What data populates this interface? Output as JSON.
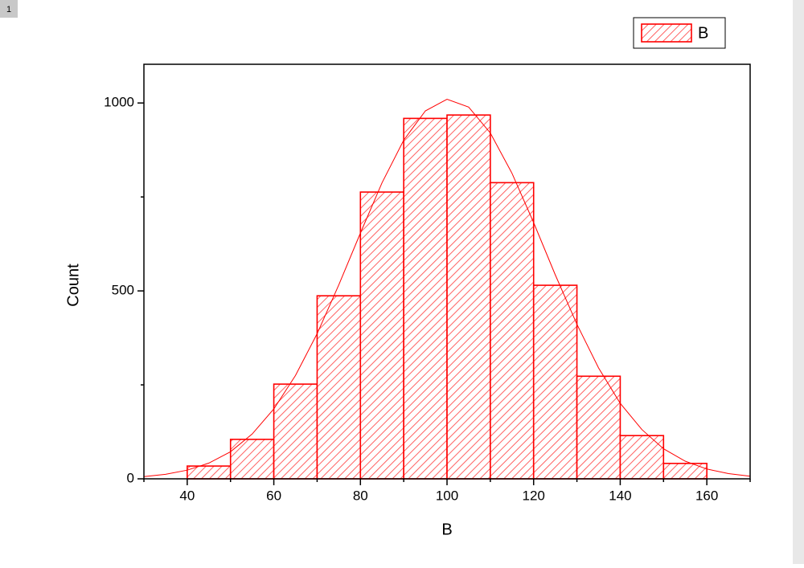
{
  "window": {
    "label": "1"
  },
  "chart_data": {
    "type": "histogram",
    "xlabel": "B",
    "ylabel": "Count",
    "series": [
      {
        "name": "B",
        "color": "#ff0000",
        "bins": [
          40,
          50,
          60,
          70,
          80,
          90,
          100,
          110,
          120,
          130,
          140,
          150,
          160
        ],
        "values": [
          34,
          105,
          252,
          487,
          763,
          959,
          968,
          788,
          515,
          273,
          115,
          41
        ]
      }
    ],
    "fit": {
      "color": "#ff0000",
      "x": [
        30,
        35,
        40,
        45,
        50,
        55,
        60,
        65,
        70,
        75,
        80,
        85,
        90,
        95,
        100,
        105,
        110,
        115,
        120,
        125,
        130,
        135,
        140,
        145,
        150,
        155,
        160,
        165,
        170
      ],
      "values": [
        6,
        12,
        23,
        42,
        72,
        119,
        186,
        275,
        386,
        516,
        654,
        788,
        901,
        979,
        1010,
        989,
        920,
        813,
        682,
        543,
        411,
        295,
        201,
        131,
        80,
        47,
        26,
        14,
        7
      ]
    },
    "xlim": [
      30,
      170
    ],
    "ylim": [
      0,
      1103
    ],
    "xticks": [
      40,
      60,
      80,
      100,
      120,
      140,
      160
    ],
    "yticks": [
      0,
      500,
      1000
    ],
    "xminorticks": [
      30,
      50,
      70,
      90,
      110,
      130,
      150,
      170
    ],
    "yminorticks": [
      250,
      750
    ],
    "legend": "top-right",
    "hatch": true
  }
}
